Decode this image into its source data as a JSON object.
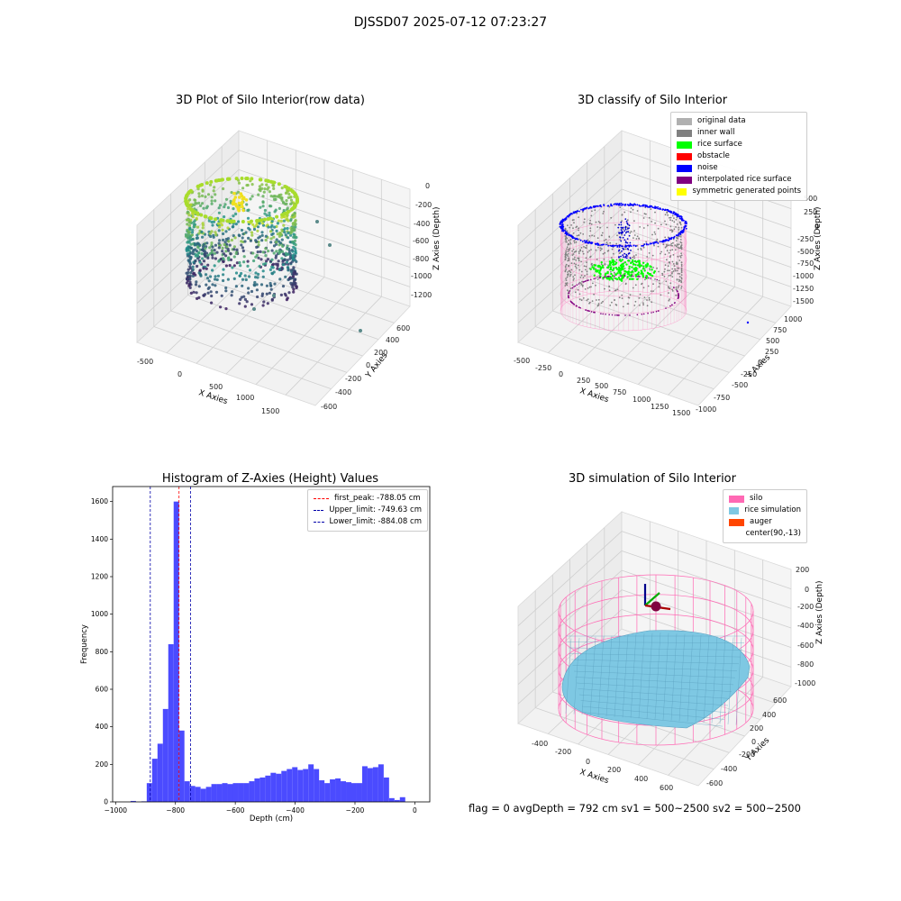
{
  "title": "DJSSD07 2025-07-12 07:23:27",
  "status": {
    "text": "flag = 0     avgDepth = 792 cm  sv1 = 500~2500  sv2 = 500~2500"
  },
  "colors": {
    "viridis_low": "#414487",
    "viridis_mid": "#2a9d8f",
    "viridis_high": "#c8e020",
    "hist_bar": "#4b4bff",
    "peak_line": "#ff0000",
    "limit_line": "#0000aa",
    "silo": "#ff69b4",
    "rice": "#7ec8e3",
    "auger": "#ff4500"
  },
  "chart_data": [
    {
      "type": "scatter",
      "title": "3D Plot of Silo Interior(row data)",
      "xlabel": "X Axies",
      "ylabel": "Y Axies",
      "zlabel": "Z Axies (Depth)",
      "x_ticks": [
        "-500",
        "0",
        "500",
        "1000",
        "1500"
      ],
      "y_ticks": [
        "-600",
        "-400",
        "-200",
        "0",
        "200",
        "400",
        "600"
      ],
      "z_ticks": [
        "-1200",
        "-1000",
        "-800",
        "-600",
        "-400",
        "-200",
        "0"
      ],
      "colormap": "viridis"
    },
    {
      "type": "scatter",
      "title": "3D classify of Silo Interior",
      "xlabel": "X Axies",
      "ylabel": "Y Axies",
      "zlabel": "Z Axies (Depth)",
      "x_ticks": [
        "-500",
        "-250",
        "0",
        "250",
        "500",
        "750",
        "1000",
        "1250",
        "1500"
      ],
      "y_ticks": [
        "-1000",
        "-750",
        "-500",
        "-250",
        "0",
        "250",
        "500",
        "750",
        "1000"
      ],
      "z_ticks": [
        "-1500",
        "-1250",
        "-1000",
        "-750",
        "-500",
        "-250",
        "0",
        "250",
        "500"
      ],
      "legend": [
        {
          "label": "original data",
          "color": "#b0b0b0"
        },
        {
          "label": "inner wall",
          "color": "#808080"
        },
        {
          "label": "rice surface",
          "color": "#00ff00"
        },
        {
          "label": "obstacle",
          "color": "#ff0000"
        },
        {
          "label": "noise",
          "color": "#0000ff"
        },
        {
          "label": "interpolated rice surface",
          "color": "#800080"
        },
        {
          "label": "symmetric generated points",
          "color": "#ffff00"
        }
      ]
    },
    {
      "type": "bar",
      "title": "Histogram of Z-Axies (Height) Values",
      "xlabel": "Depth (cm)",
      "ylabel": "Frequency",
      "xlim": [
        -1010,
        50
      ],
      "ylim": [
        0,
        1680
      ],
      "x_ticks": [
        -1000,
        -800,
        -600,
        -400,
        -200,
        0
      ],
      "y_ticks": [
        0,
        200,
        400,
        600,
        800,
        1000,
        1200,
        1400,
        1600
      ],
      "bin_width": 18,
      "bins": [
        {
          "x": -950,
          "y": 5
        },
        {
          "x": -914,
          "y": 3
        },
        {
          "x": -896,
          "y": 100
        },
        {
          "x": -878,
          "y": 230
        },
        {
          "x": -860,
          "y": 310
        },
        {
          "x": -842,
          "y": 495
        },
        {
          "x": -824,
          "y": 840
        },
        {
          "x": -806,
          "y": 1600
        },
        {
          "x": -788,
          "y": 380
        },
        {
          "x": -770,
          "y": 110
        },
        {
          "x": -752,
          "y": 85
        },
        {
          "x": -734,
          "y": 80
        },
        {
          "x": -716,
          "y": 70
        },
        {
          "x": -698,
          "y": 80
        },
        {
          "x": -680,
          "y": 95
        },
        {
          "x": -662,
          "y": 95
        },
        {
          "x": -644,
          "y": 100
        },
        {
          "x": -626,
          "y": 95
        },
        {
          "x": -608,
          "y": 100
        },
        {
          "x": -590,
          "y": 100
        },
        {
          "x": -572,
          "y": 100
        },
        {
          "x": -554,
          "y": 110
        },
        {
          "x": -536,
          "y": 125
        },
        {
          "x": -518,
          "y": 130
        },
        {
          "x": -500,
          "y": 140
        },
        {
          "x": -482,
          "y": 155
        },
        {
          "x": -464,
          "y": 150
        },
        {
          "x": -446,
          "y": 165
        },
        {
          "x": -428,
          "y": 175
        },
        {
          "x": -410,
          "y": 185
        },
        {
          "x": -392,
          "y": 170
        },
        {
          "x": -374,
          "y": 175
        },
        {
          "x": -356,
          "y": 200
        },
        {
          "x": -338,
          "y": 175
        },
        {
          "x": -320,
          "y": 115
        },
        {
          "x": -302,
          "y": 100
        },
        {
          "x": -284,
          "y": 120
        },
        {
          "x": -266,
          "y": 125
        },
        {
          "x": -248,
          "y": 110
        },
        {
          "x": -230,
          "y": 105
        },
        {
          "x": -212,
          "y": 100
        },
        {
          "x": -194,
          "y": 100
        },
        {
          "x": -176,
          "y": 190
        },
        {
          "x": -158,
          "y": 180
        },
        {
          "x": -140,
          "y": 185
        },
        {
          "x": -122,
          "y": 200
        },
        {
          "x": -104,
          "y": 130
        },
        {
          "x": -86,
          "y": 20
        },
        {
          "x": -68,
          "y": 10
        },
        {
          "x": -50,
          "y": 25
        }
      ],
      "vlines": [
        {
          "label": "first_peak: -788.05 cm",
          "x": -788.05,
          "color": "#ff0000"
        },
        {
          "label": "Upper_limit: -749.63 cm",
          "x": -749.63,
          "color": "#0000aa"
        },
        {
          "label": "Lower_limit: -884.08 cm",
          "x": -884.08,
          "color": "#0000aa"
        }
      ],
      "legend_placement": "top-right"
    },
    {
      "type": "scatter",
      "title": "3D simulation of Silo Interior",
      "xlabel": "X Axies",
      "ylabel": "Y Axies",
      "zlabel": "Z Axies (Depth)",
      "x_ticks": [
        "-400",
        "-200",
        "0",
        "200",
        "400",
        "600"
      ],
      "y_ticks": [
        "-600",
        "-400",
        "-200",
        "0",
        "200",
        "400",
        "600"
      ],
      "z_ticks": [
        "-1000",
        "-800",
        "-600",
        "-400",
        "-200",
        "0",
        "200"
      ],
      "legend": [
        {
          "label": "silo",
          "color": "#ff69b4"
        },
        {
          "label": "rice simulation",
          "color": "#7ec8e3"
        },
        {
          "label": "auger",
          "color": "#ff4500"
        },
        {
          "label": "center(90,-13)",
          "color": ""
        }
      ]
    }
  ]
}
